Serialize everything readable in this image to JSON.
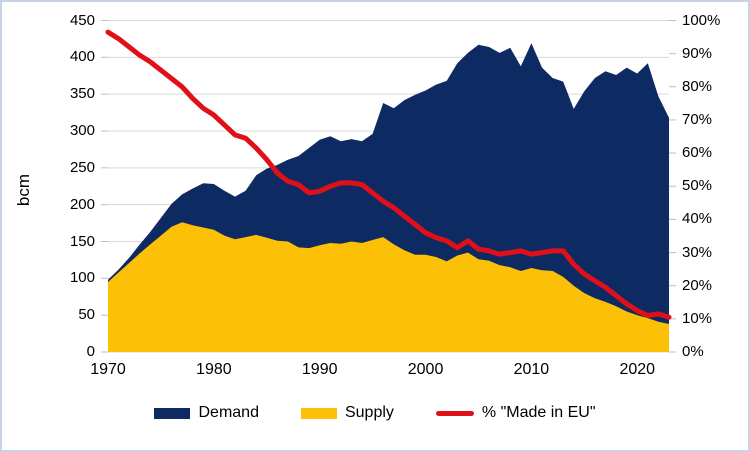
{
  "axes": {
    "y_left": {
      "title": "bcm",
      "step": 50,
      "ticks": [
        "0",
        "50",
        "100",
        "150",
        "200",
        "250",
        "300",
        "350",
        "400",
        "450"
      ]
    },
    "y_right": {
      "step": 10,
      "ticks": [
        "0%",
        "10%",
        "20%",
        "30%",
        "40%",
        "50%",
        "60%",
        "70%",
        "80%",
        "90%",
        "100%"
      ]
    },
    "x": {
      "ticks": [
        "1970",
        "1980",
        "1990",
        "2000",
        "2010",
        "2020"
      ]
    }
  },
  "legend": {
    "items": [
      {
        "label": "Demand",
        "color": "#0e2a63",
        "type": "area"
      },
      {
        "label": "Supply",
        "color": "#fcc006",
        "type": "area"
      },
      {
        "label": "% \"Made in EU\"",
        "color": "#e01018",
        "type": "line"
      }
    ]
  },
  "theme": {
    "background": "#ffffff",
    "border": "#c7d3e4",
    "gridline": "#d9d9d9",
    "tick": "#bfbfbf",
    "text": "#000000"
  },
  "chart_data": {
    "type": "area+line",
    "title": "",
    "y_left_label": "bcm",
    "y_right_label": "%",
    "grid": true,
    "legend_position": "bottom",
    "x_range": [
      1970,
      2023
    ],
    "y_left_range": [
      0,
      450
    ],
    "y_right_range": [
      0,
      100
    ],
    "x": [
      1970,
      1971,
      1972,
      1973,
      1974,
      1975,
      1976,
      1977,
      1978,
      1979,
      1980,
      1981,
      1982,
      1983,
      1984,
      1985,
      1986,
      1987,
      1988,
      1989,
      1990,
      1991,
      1992,
      1993,
      1994,
      1995,
      1996,
      1997,
      1998,
      1999,
      2000,
      2001,
      2002,
      2003,
      2004,
      2005,
      2006,
      2007,
      2008,
      2009,
      2010,
      2011,
      2012,
      2013,
      2014,
      2015,
      2016,
      2017,
      2018,
      2019,
      2020,
      2021,
      2022,
      2023
    ],
    "series": [
      {
        "name": "Demand",
        "type": "area",
        "axis": "left",
        "color": "#0e2a63",
        "values": [
          98,
          112,
          128,
          146,
          163,
          182,
          201,
          214,
          222,
          229,
          228,
          219,
          211,
          219,
          240,
          249,
          254,
          261,
          266,
          277,
          288,
          293,
          286,
          289,
          286,
          296,
          338,
          331,
          342,
          349,
          355,
          363,
          368,
          392,
          406,
          417,
          414,
          406,
          413,
          388,
          419,
          386,
          372,
          367,
          330,
          354,
          372,
          381,
          376,
          386,
          378,
          392,
          347,
          318
        ]
      },
      {
        "name": "Supply",
        "type": "area",
        "axis": "left",
        "color": "#fcc006",
        "values": [
          95,
          108,
          121,
          134,
          146,
          158,
          170,
          176,
          172,
          169,
          166,
          158,
          153,
          156,
          159,
          155,
          151,
          150,
          142,
          141,
          145,
          148,
          147,
          150,
          148,
          152,
          156,
          146,
          138,
          132,
          132,
          129,
          123,
          131,
          135,
          126,
          124,
          118,
          115,
          110,
          114,
          111,
          110,
          102,
          90,
          80,
          73,
          68,
          62,
          55,
          50,
          46,
          41,
          38
        ]
      },
      {
        "name": "% \"Made in EU\"",
        "type": "line",
        "axis": "right",
        "color": "#e01018",
        "values": [
          96.5,
          94.5,
          92,
          89.5,
          87.5,
          85,
          82.5,
          80,
          76.5,
          73.5,
          71.5,
          68.5,
          65.5,
          64.5,
          61.5,
          58,
          54,
          51.5,
          50.5,
          48,
          48.5,
          50,
          51,
          51,
          50.5,
          48,
          45.5,
          43.5,
          41,
          38.5,
          36,
          34.5,
          33.5,
          31.5,
          33.5,
          31,
          30.5,
          29.5,
          30,
          30.5,
          29.5,
          30,
          30.5,
          30.5,
          26.5,
          23.5,
          21.5,
          19.5,
          17,
          14.5,
          12.5,
          11,
          11.5,
          10.5
        ]
      }
    ]
  }
}
